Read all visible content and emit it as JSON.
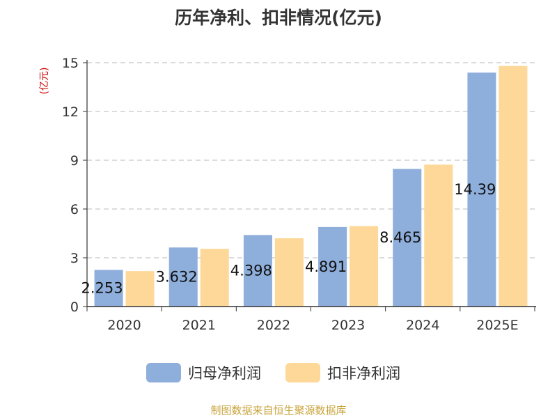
{
  "chart_data": {
    "type": "bar",
    "title": "历年净利、扣非情况(亿元)",
    "ylabel": "(亿元)",
    "xlabel": "",
    "categories": [
      "2020",
      "2021",
      "2022",
      "2023",
      "2024",
      "2025E"
    ],
    "ylim": [
      0,
      15
    ],
    "yticks": [
      0,
      3,
      6,
      9,
      12,
      15
    ],
    "grid": true,
    "legend_position": "bottom",
    "series": [
      {
        "name": "归母净利润",
        "color": "#8eaedb",
        "values": [
          2.253,
          3.632,
          4.398,
          4.891,
          8.465,
          14.39
        ],
        "data_labels": [
          "2.253",
          "3.632",
          "4.398",
          "4.891",
          "8.465",
          "14.39"
        ]
      },
      {
        "name": "扣非净利润",
        "color": "#fdd898",
        "values": [
          2.18,
          3.55,
          4.2,
          4.95,
          8.73,
          14.8
        ]
      }
    ]
  },
  "source_note": "制图数据来自恒生聚源数据库",
  "colors": {
    "ylabel": "#cc0000",
    "grid": "#c8c8c8",
    "axis": "#333333",
    "source": "#c9a43b"
  }
}
